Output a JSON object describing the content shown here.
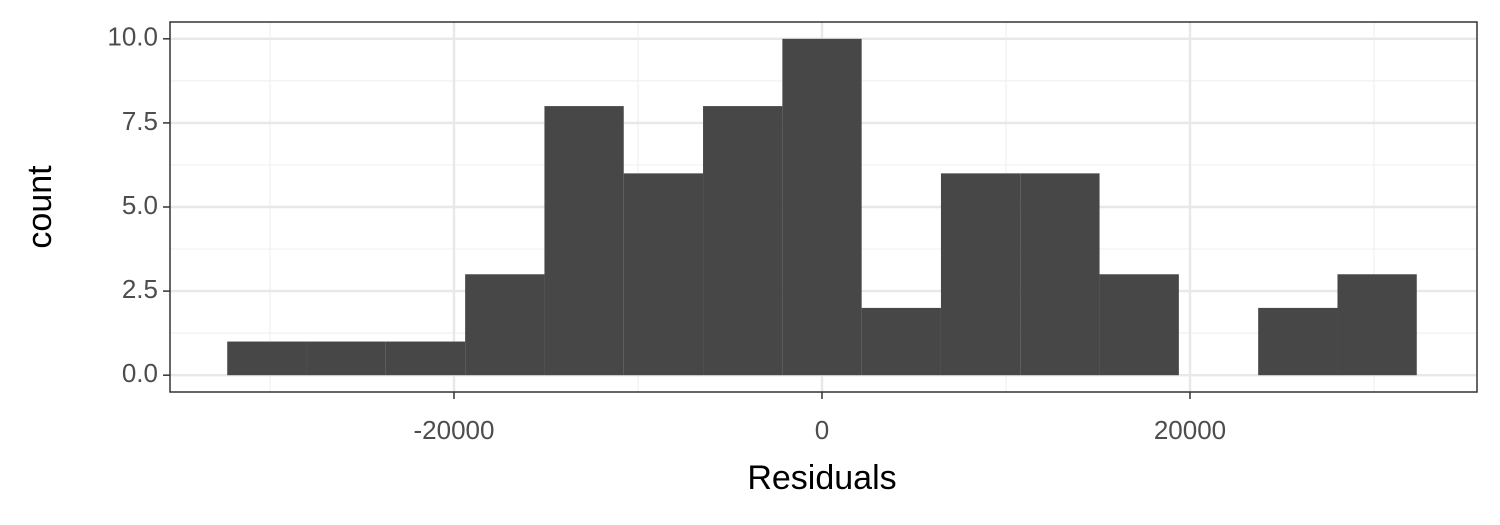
{
  "chart_data": {
    "type": "histogram",
    "x_label": "Residuals",
    "y_label": "count",
    "bins": [
      -32325,
      -28015,
      -23705,
      -19395,
      -15085,
      -10775,
      -6465,
      -2155,
      2155,
      6465,
      10775,
      15085,
      19395,
      23705,
      28015,
      32325
    ],
    "counts": [
      1,
      1,
      1,
      3,
      8,
      6,
      8,
      10,
      2,
      6,
      6,
      3,
      0,
      2,
      3
    ],
    "color": "#474747",
    "xlim": [
      -35435,
      35598
    ],
    "xticks": [
      -20000,
      0,
      20000
    ],
    "ylim": [
      -0.5,
      10.5
    ],
    "yticks": [
      {
        "value": 0,
        "label": "0.0"
      },
      {
        "value": 2.5,
        "label": "2.5"
      },
      {
        "value": 5,
        "label": "5.0"
      },
      {
        "value": 7.5,
        "label": "7.5"
      },
      {
        "value": 10,
        "label": "10.0"
      }
    ],
    "grid": true
  }
}
